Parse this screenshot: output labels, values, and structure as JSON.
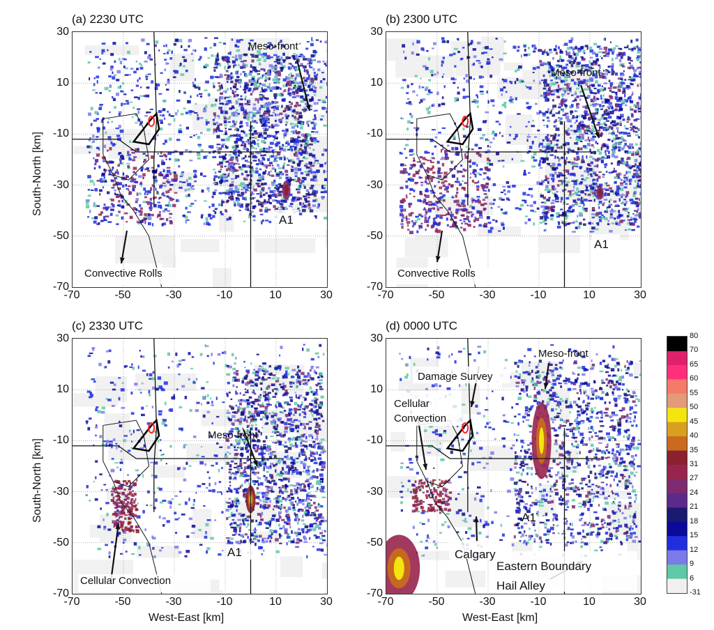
{
  "ylabel": "South-North [km]",
  "xlabel": "West-East [km]",
  "panels": [
    {
      "title": "(a) 2230 UTC"
    },
    {
      "title": "(b) 2300 UTC"
    },
    {
      "title": "(c) 2330 UTC"
    },
    {
      "title": "(d) 0000 UTC"
    }
  ],
  "annotations": {
    "a": {
      "meso": "Meso-front",
      "rolls": "Convective Rolls",
      "a1": "A1"
    },
    "b": {
      "meso": "Meso-front",
      "rolls": "Convective Rolls",
      "a1": "A1"
    },
    "c": {
      "meso": "Meso-front",
      "cells": "Cellular Convection",
      "a1": "A1"
    },
    "d": {
      "meso": "Meso-front",
      "damage": "Damage Survey",
      "cells": "Cellular\nConvection",
      "a1": "A1",
      "calgary": "Calgary",
      "boundary": "Eastern Boundary\nHail Alley"
    }
  },
  "colors": {
    "-31": "#f0f0f0",
    "6": "#5fc8a7",
    "9": "#7b7be8",
    "12": "#1f2fe0",
    "15": "#0a0a9a",
    "18": "#1a1a70",
    "21": "#5b2a8a",
    "24": "#7e2a6e",
    "27": "#98244e",
    "31": "#8a2030",
    "35": "#c96a1e",
    "40": "#d9a020",
    "45": "#f4e410",
    "50": "#e49a78",
    "55": "#f47a6a",
    "60": "#ff2f7a",
    "65": "#e0206a",
    "70": "#d8d8d8",
    "80": "#000000"
  },
  "chart_data": {
    "type": "heatmap",
    "panels": [
      "(a) 2230 UTC",
      "(b) 2300 UTC",
      "(c) 2330 UTC",
      "(d) 0000 UTC"
    ],
    "xlabel": "West-East [km]",
    "ylabel": "South-North [km]",
    "x_ticks": [
      "-70",
      "-50",
      "-30",
      "-10",
      "10",
      "30"
    ],
    "y_ticks": [
      "30",
      "10",
      "-10",
      "-30",
      "-50",
      "-70"
    ],
    "xlim": [
      -70,
      30
    ],
    "ylim": [
      -70,
      30
    ],
    "grid": true,
    "colorbar": {
      "ticks": [
        "80",
        "70",
        "65",
        "60",
        "55",
        "50",
        "45",
        "40",
        "35",
        "31",
        "27",
        "24",
        "21",
        "18",
        "15",
        "12",
        "9",
        "6",
        "-31"
      ],
      "placement": "right"
    }
  }
}
